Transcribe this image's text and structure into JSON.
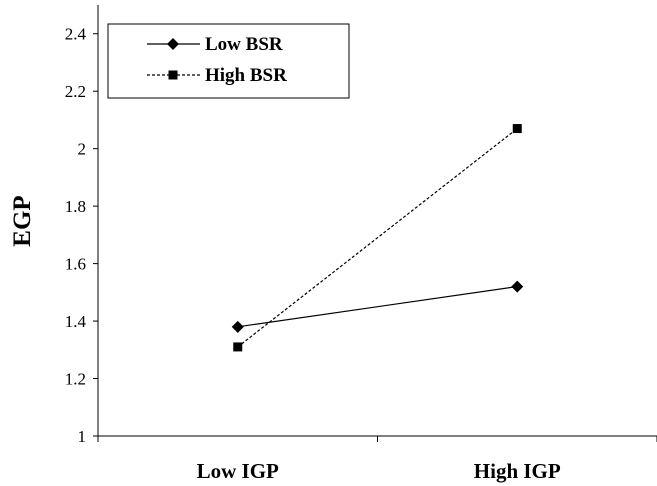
{
  "chart_data": {
    "type": "line",
    "categories": [
      "Low IGP",
      "High IGP"
    ],
    "series": [
      {
        "name": "Low BSR",
        "values": [
          1.38,
          1.52
        ],
        "marker": "diamond",
        "line": "solid",
        "color": "#000000"
      },
      {
        "name": "High BSR",
        "values": [
          1.31,
          2.07
        ],
        "marker": "square",
        "line": "dashed",
        "color": "#000000"
      }
    ],
    "title": "",
    "xlabel": "",
    "ylabel": "EGP",
    "ylim": [
      1,
      2.5
    ],
    "yticks": [
      "1",
      "1.2",
      "1.4",
      "1.6",
      "1.8",
      "2",
      "2.2",
      "2.4"
    ],
    "grid": false,
    "legend_position": "top-left"
  }
}
